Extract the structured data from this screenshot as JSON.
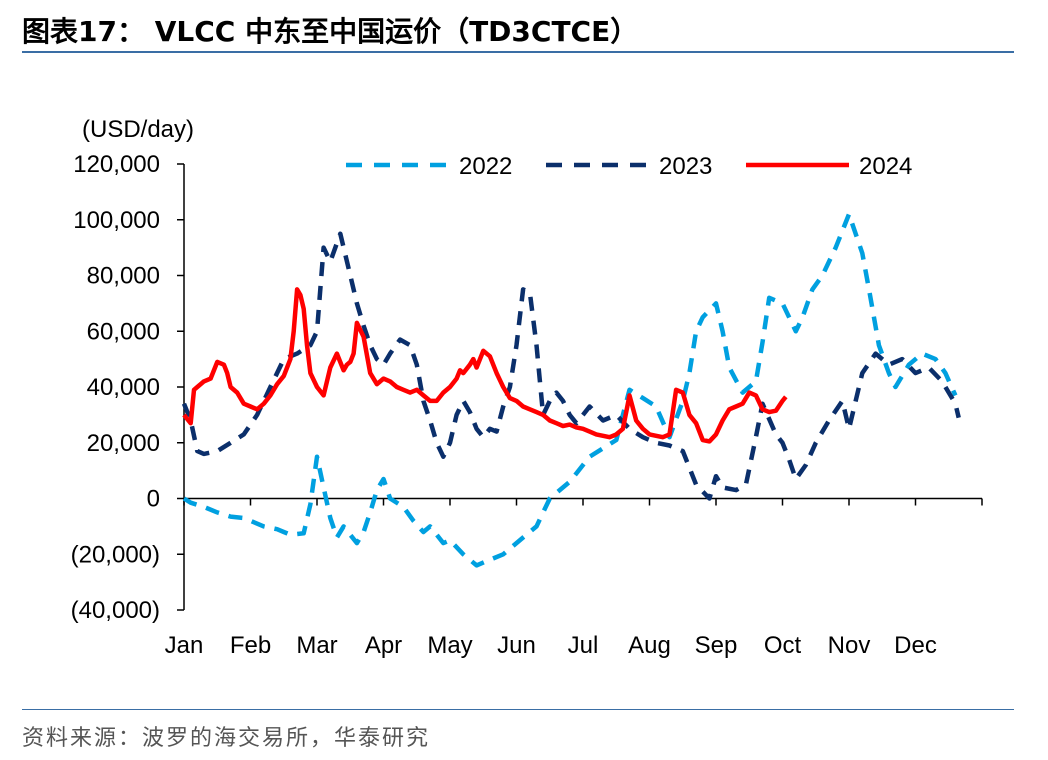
{
  "page": {
    "title": "图表17：  VLCC 中东至中国运价（TD3CTCE）",
    "source": "资料来源：波罗的海交易所，华泰研究"
  },
  "chart_data": {
    "type": "line",
    "unit_label": "(USD/day)",
    "ylim": [
      -40000,
      120000
    ],
    "y_ticks": [
      120000,
      100000,
      80000,
      60000,
      40000,
      20000,
      0,
      -20000,
      -40000
    ],
    "y_tick_labels": [
      "120,000",
      "100,000",
      "80,000",
      "60,000",
      "40,000",
      "20,000",
      "0",
      "(20,000)",
      "(40,000)"
    ],
    "x_ticks": [
      "Jan",
      "Feb",
      "Mar",
      "Apr",
      "May",
      "Jun",
      "Jul",
      "Aug",
      "Sep",
      "Oct",
      "Nov",
      "Dec"
    ],
    "x_unit": "month index (0 = Jan 1, 12 = Dec 31)",
    "grid": false,
    "legend_position": "top",
    "series": [
      {
        "name": "2022",
        "color": "#00a0e0",
        "style": "dashed",
        "x": [
          0,
          0.1,
          0.3,
          0.5,
          0.7,
          0.9,
          1.0,
          1.2,
          1.4,
          1.5,
          1.6,
          1.8,
          1.9,
          2.0,
          2.1,
          2.2,
          2.3,
          2.4,
          2.6,
          2.7,
          2.8,
          2.9,
          3.0,
          3.1,
          3.3,
          3.45,
          3.6,
          3.7,
          3.9,
          4.0,
          4.2,
          4.4,
          4.6,
          4.8,
          4.95,
          5.1,
          5.2,
          5.3,
          5.4,
          5.5,
          5.6,
          5.7,
          5.8,
          5.9,
          6.0,
          6.1,
          6.3,
          6.5,
          6.7,
          6.9,
          7.1,
          7.3,
          7.5,
          7.6,
          7.7,
          7.8,
          8.0,
          8.1,
          8.2,
          8.4,
          8.6,
          8.7,
          8.8,
          9.0,
          9.2,
          9.3,
          9.45,
          9.6,
          9.8,
          10.0,
          10.2,
          10.3,
          10.45,
          10.6,
          10.7,
          10.9,
          11.1,
          11.3,
          11.45,
          11.6
        ],
        "values": [
          0,
          -1500,
          -3000,
          -5000,
          -6500,
          -7000,
          -8000,
          -10000,
          -11000,
          -12000,
          -13000,
          -12500,
          -2000,
          15000,
          4000,
          -7000,
          -14000,
          -10000,
          -16000,
          -12000,
          -5000,
          3000,
          7000,
          0,
          -3000,
          -8000,
          -12000,
          -10000,
          -16000,
          -15000,
          -20000,
          -24000,
          -22000,
          -20000,
          -17000,
          -14000,
          -12000,
          -10000,
          -5000,
          0,
          2000,
          4000,
          6000,
          9000,
          12000,
          15000,
          18000,
          21000,
          39000,
          36000,
          33000,
          22000,
          35000,
          45000,
          60000,
          65000,
          70000,
          60000,
          47000,
          38000,
          42000,
          56000,
          72000,
          70000,
          60000,
          65000,
          75000,
          80000,
          90000,
          102000,
          88000,
          75000,
          55000,
          45000,
          40000,
          48000,
          52000,
          50000,
          45000,
          37000
        ]
      },
      {
        "name": "2023",
        "color": "#0b2f6b",
        "style": "dashed",
        "x": [
          0,
          0.1,
          0.2,
          0.3,
          0.5,
          0.7,
          0.9,
          1.1,
          1.3,
          1.5,
          1.7,
          1.9,
          2.0,
          2.1,
          2.2,
          2.35,
          2.5,
          2.6,
          2.7,
          2.8,
          2.9,
          3.0,
          3.1,
          3.25,
          3.4,
          3.5,
          3.6,
          3.7,
          3.8,
          3.9,
          4.0,
          4.1,
          4.2,
          4.3,
          4.4,
          4.5,
          4.6,
          4.7,
          4.8,
          4.9,
          5.0,
          5.1,
          5.2,
          5.3,
          5.4,
          5.5,
          5.6,
          5.7,
          5.8,
          5.9,
          6.0,
          6.1,
          6.3,
          6.5,
          6.7,
          6.9,
          7.1,
          7.3,
          7.5,
          7.7,
          7.9,
          8.0,
          8.1,
          8.3,
          8.45,
          8.6,
          8.7,
          8.9,
          9.0,
          9.1,
          9.2,
          9.35,
          9.5,
          9.7,
          9.9,
          10.0,
          10.2,
          10.4,
          10.6,
          10.8,
          11.0,
          11.2,
          11.4,
          11.6,
          11.65
        ],
        "values": [
          34000,
          28000,
          17000,
          16000,
          17000,
          20000,
          23000,
          30000,
          40000,
          50000,
          52000,
          55000,
          60000,
          90000,
          85000,
          95000,
          80000,
          70000,
          62000,
          55000,
          50000,
          48000,
          52000,
          57000,
          55000,
          48000,
          35000,
          28000,
          20000,
          15000,
          20000,
          30000,
          35000,
          31000,
          25000,
          22000,
          25000,
          24000,
          33000,
          40000,
          55000,
          75000,
          74000,
          55000,
          30000,
          35000,
          38000,
          35000,
          30000,
          27000,
          30000,
          33000,
          28000,
          30000,
          25000,
          22000,
          20000,
          19000,
          17000,
          5000,
          0,
          8000,
          4000,
          3000,
          5000,
          22000,
          34000,
          23000,
          20000,
          14000,
          7000,
          12000,
          20000,
          28000,
          35000,
          25000,
          45000,
          52000,
          48000,
          50000,
          45000,
          47000,
          42000,
          34000,
          29000
        ]
      },
      {
        "name": "2024",
        "color": "#ff0000",
        "style": "solid",
        "x": [
          0,
          0.1,
          0.15,
          0.2,
          0.3,
          0.4,
          0.5,
          0.6,
          0.65,
          0.7,
          0.8,
          0.9,
          1.0,
          1.1,
          1.2,
          1.3,
          1.4,
          1.5,
          1.55,
          1.6,
          1.65,
          1.7,
          1.75,
          1.8,
          1.85,
          1.9,
          2.0,
          2.1,
          2.2,
          2.3,
          2.4,
          2.45,
          2.5,
          2.55,
          2.6,
          2.7,
          2.8,
          2.9,
          3.0,
          3.1,
          3.2,
          3.3,
          3.4,
          3.5,
          3.6,
          3.7,
          3.8,
          3.9,
          4.0,
          4.1,
          4.15,
          4.2,
          4.3,
          4.35,
          4.4,
          4.5,
          4.6,
          4.7,
          4.8,
          4.9,
          5.0,
          5.1,
          5.2,
          5.3,
          5.4,
          5.5,
          5.6,
          5.7,
          5.8,
          5.9,
          6.0,
          6.1,
          6.2,
          6.3,
          6.4,
          6.5,
          6.6,
          6.7,
          6.8,
          6.9,
          7.0,
          7.1,
          7.2,
          7.3,
          7.4,
          7.5,
          7.6,
          7.7,
          7.8,
          7.9,
          8.0,
          8.1,
          8.2,
          8.3,
          8.4,
          8.5,
          8.6,
          8.7,
          8.8,
          8.9,
          9.0,
          9.05
        ],
        "values": [
          30000,
          27000,
          39000,
          40000,
          42000,
          43000,
          49000,
          48000,
          45000,
          40000,
          38000,
          34000,
          33000,
          32000,
          34000,
          37000,
          41000,
          44000,
          47000,
          50000,
          60000,
          75000,
          73000,
          68000,
          55000,
          45000,
          40000,
          37000,
          47000,
          52000,
          46000,
          48000,
          49000,
          52000,
          63000,
          58000,
          45000,
          41000,
          43000,
          42000,
          40000,
          39000,
          38000,
          39000,
          37000,
          35000,
          35000,
          38000,
          40000,
          43000,
          46000,
          45000,
          48000,
          50000,
          47000,
          53000,
          51000,
          45000,
          40000,
          36000,
          35000,
          33000,
          32000,
          31000,
          30000,
          28000,
          27000,
          26000,
          26500,
          25500,
          25000,
          24000,
          23000,
          22500,
          22000,
          23000,
          25000,
          37000,
          28000,
          25000,
          23000,
          22500,
          22000,
          23000,
          39000,
          38000,
          30000,
          27000,
          21000,
          20500,
          23000,
          28000,
          32000,
          33000,
          34000,
          38000,
          37000,
          32000,
          31000,
          31500,
          35000,
          36500
        ]
      }
    ]
  }
}
